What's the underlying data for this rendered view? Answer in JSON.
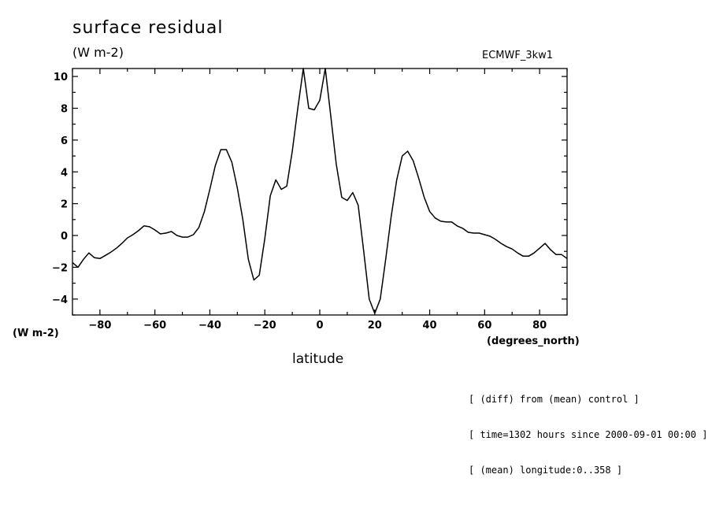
{
  "chart_data": {
    "type": "line",
    "title": "surface residual",
    "units": "(W m-2)",
    "run_label": "ECMWF_3kw1",
    "ylabel": "(W m-2)",
    "xlabel": "latitude",
    "xunit": "(degrees_north)",
    "xlim": [
      -90,
      90
    ],
    "ylim": [
      -5,
      10.5
    ],
    "xticks": [
      -80,
      -60,
      -40,
      -20,
      0,
      20,
      40,
      60,
      80
    ],
    "yticks": [
      -4,
      -2,
      0,
      2,
      4,
      6,
      8,
      10
    ],
    "grid": false,
    "series": [
      {
        "x": [
          -90,
          -88,
          -86,
          -84,
          -82,
          -80,
          -78,
          -76,
          -74,
          -72,
          -70,
          -68,
          -66,
          -64,
          -62,
          -60,
          -58,
          -56,
          -54,
          -52,
          -50,
          -48,
          -46,
          -44,
          -42,
          -40,
          -38,
          -36,
          -34,
          -32,
          -30,
          -28,
          -26,
          -24,
          -22,
          -20,
          -18,
          -16,
          -14,
          -12,
          -10,
          -8,
          -6,
          -4,
          -2,
          0,
          2,
          4,
          6,
          8,
          10,
          12,
          14,
          16,
          18,
          20,
          22,
          24,
          26,
          28,
          30,
          32,
          34,
          36,
          38,
          40,
          42,
          44,
          46,
          48,
          50,
          52,
          54,
          56,
          58,
          60,
          62,
          64,
          66,
          68,
          70,
          72,
          74,
          76,
          78,
          80,
          82,
          84,
          86,
          88,
          90
        ],
        "y": [
          -1.7,
          -2.0,
          -1.5,
          -1.1,
          -1.4,
          -1.45,
          -1.25,
          -1.05,
          -0.8,
          -0.5,
          -0.15,
          0.05,
          0.3,
          0.6,
          0.55,
          0.35,
          0.1,
          0.15,
          0.25,
          0.0,
          -0.1,
          -0.1,
          0.05,
          0.5,
          1.5,
          2.9,
          4.4,
          5.4,
          5.4,
          4.6,
          3.0,
          1.0,
          -1.5,
          -2.8,
          -2.5,
          -0.2,
          2.5,
          3.5,
          2.9,
          3.1,
          5.3,
          8.0,
          10.5,
          8.0,
          7.9,
          8.5,
          10.5,
          7.5,
          4.5,
          2.4,
          2.2,
          2.7,
          1.9,
          -1.0,
          -4.0,
          -4.9,
          -4.0,
          -1.5,
          1.2,
          3.5,
          5.0,
          5.3,
          4.7,
          3.6,
          2.4,
          1.5,
          1.1,
          0.9,
          0.85,
          0.85,
          0.6,
          0.45,
          0.2,
          0.15,
          0.15,
          0.05,
          -0.05,
          -0.25,
          -0.5,
          -0.7,
          -0.85,
          -1.1,
          -1.3,
          -1.3,
          -1.1,
          -0.8,
          -0.5,
          -0.9,
          -1.2,
          -1.2,
          -1.45
        ]
      }
    ]
  },
  "annotations": [
    "[ (diff) from (mean) control ]",
    "[ time=1302 hours since 2000-09-01 00:00 ]",
    "[ (mean) longitude:0..358 ]"
  ]
}
